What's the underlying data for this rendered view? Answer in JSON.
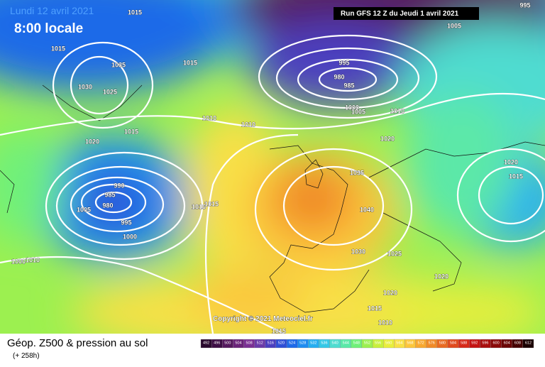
{
  "header": {
    "date": "Lundi 12 avril 2021",
    "time": "8:00 locale",
    "run": "Run GFS 12 Z du Jeudi 1 avril 2021"
  },
  "copyright": "Copyright © 2021 Meteociel.fr",
  "footer": {
    "title": "Géop. Z500 & pression au sol",
    "lead": "(+ 258h)"
  },
  "isobar_labels": [
    "1015",
    "1015",
    "1035",
    "1015",
    "1030",
    "1025",
    "1015",
    "1020",
    "1010",
    "1010",
    "995",
    "980",
    "985",
    "1000",
    "1005",
    "1010",
    "1020",
    "1005",
    "995",
    "990",
    "985",
    "980",
    "1005",
    "995",
    "1000",
    "1010",
    "1015",
    "1035",
    "1040",
    "1030",
    "1025",
    "1020",
    "1015",
    "1020",
    "1020",
    "1015",
    "1010",
    "1015",
    "1000",
    "1010"
  ],
  "legend": {
    "levels": [
      492,
      496,
      500,
      504,
      508,
      512,
      516,
      520,
      524,
      528,
      532,
      536,
      540,
      544,
      548,
      552,
      556,
      560,
      564,
      568,
      572,
      576,
      580,
      584,
      588,
      592,
      596,
      600,
      604,
      608,
      612
    ],
    "colors": [
      "#2a0a2e",
      "#3d0f45",
      "#551a5e",
      "#6a2479",
      "#7a2f93",
      "#6a3aa8",
      "#4b3fbf",
      "#2f4fd6",
      "#1f6ae8",
      "#1f8cf0",
      "#25aef0",
      "#35c8e6",
      "#4fdcd0",
      "#5be8a8",
      "#70f07a",
      "#9cf050",
      "#c8f03c",
      "#e8ee3c",
      "#f8e046",
      "#fcc63c",
      "#f8a830",
      "#f08a28",
      "#e86a22",
      "#e04a1e",
      "#d62a1a",
      "#c41414",
      "#a80e0e",
      "#8a0a0a",
      "#6a0606",
      "#460404",
      "#1a0000"
    ]
  }
}
